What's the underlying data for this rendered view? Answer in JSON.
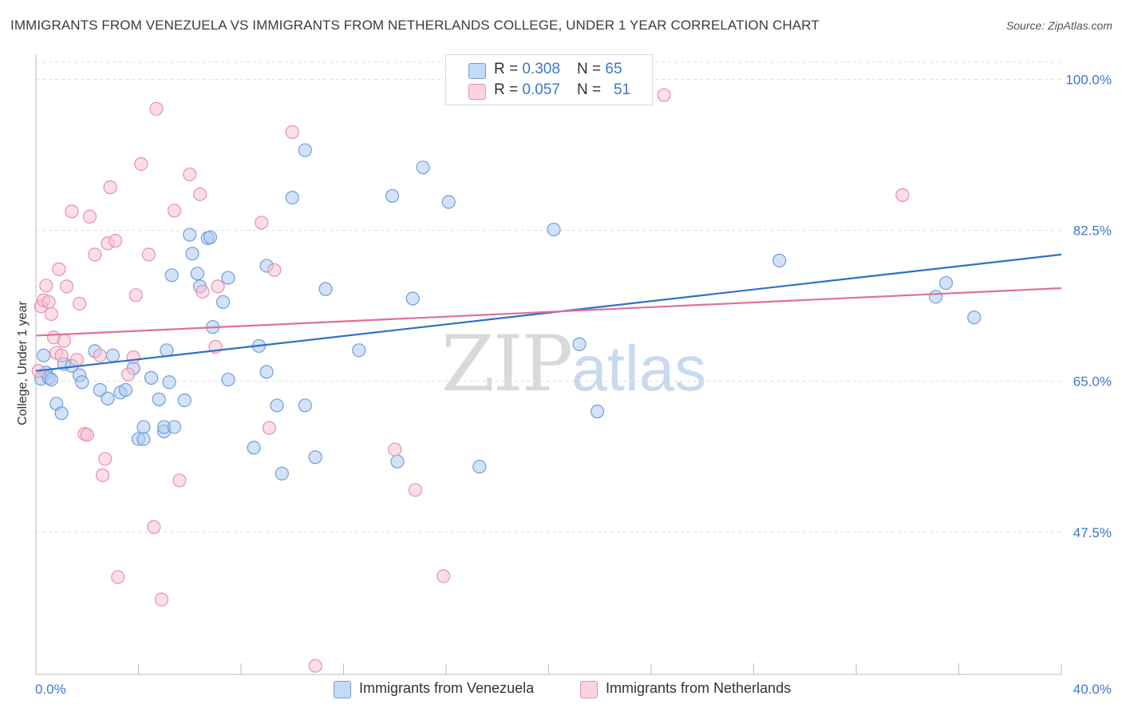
{
  "title": "IMMIGRANTS FROM VENEZUELA VS IMMIGRANTS FROM NETHERLANDS COLLEGE, UNDER 1 YEAR CORRELATION CHART",
  "source": "Source: ZipAtlas.com",
  "watermark": {
    "zip": "ZIP",
    "atlas": "atlas"
  },
  "colors": {
    "blue_fill": "#aecbf0",
    "blue_stroke": "#6d9fd9",
    "blue_line": "#2f6fcc",
    "pink_fill": "#f7c3d3",
    "pink_stroke": "#e98fab",
    "pink_line": "#e0709a",
    "grid": "#dcdcdc",
    "axis_label": "#3b78c8"
  },
  "legend": [
    {
      "r_label": "R = ",
      "r_value": "0.308",
      "n_label": "N = ",
      "n_value": "65"
    },
    {
      "r_label": "R = ",
      "r_value": "0.057",
      "n_label": "N = ",
      "n_value": "51"
    }
  ],
  "chart_data": {
    "type": "scatter",
    "title": "IMMIGRANTS FROM VENEZUELA VS IMMIGRANTS FROM NETHERLANDS COLLEGE, UNDER 1 YEAR CORRELATION CHART",
    "xlabel": "",
    "ylabel": "College, Under 1 year",
    "xlim": [
      0,
      40
    ],
    "ylim": [
      31,
      102
    ],
    "x_tick_labels": [
      "0.0%",
      "40.0%"
    ],
    "y_ticks": [
      100,
      82.5,
      65,
      47.5
    ],
    "y_tick_labels": [
      "100.0%",
      "82.5%",
      "65.0%",
      "47.5%"
    ],
    "grid": true,
    "legend_position": "top-center",
    "series": [
      {
        "name": "Immigrants from Venezuela",
        "color": "#aecbf0",
        "trend": {
          "x": [
            0,
            40
          ],
          "y": [
            66.2,
            79.7
          ]
        },
        "points": [
          [
            0.2,
            65.3
          ],
          [
            0.3,
            68.0
          ],
          [
            0.4,
            66.0
          ],
          [
            0.5,
            65.4
          ],
          [
            0.6,
            65.2
          ],
          [
            0.8,
            62.4
          ],
          [
            1.0,
            61.3
          ],
          [
            1.1,
            67.0
          ],
          [
            1.4,
            66.8
          ],
          [
            1.7,
            65.7
          ],
          [
            1.8,
            64.9
          ],
          [
            2.3,
            68.5
          ],
          [
            2.5,
            64.0
          ],
          [
            2.8,
            63.0
          ],
          [
            3.0,
            68.0
          ],
          [
            3.3,
            63.7
          ],
          [
            3.5,
            64.0
          ],
          [
            3.8,
            66.5
          ],
          [
            4.0,
            58.3
          ],
          [
            4.2,
            59.7
          ],
          [
            4.2,
            58.3
          ],
          [
            4.5,
            65.4
          ],
          [
            4.8,
            62.9
          ],
          [
            5.0,
            59.2
          ],
          [
            5.0,
            59.7
          ],
          [
            5.1,
            68.6
          ],
          [
            5.2,
            64.9
          ],
          [
            5.3,
            77.3
          ],
          [
            5.4,
            59.7
          ],
          [
            5.8,
            62.8
          ],
          [
            6.0,
            82.0
          ],
          [
            6.1,
            79.8
          ],
          [
            6.3,
            77.5
          ],
          [
            6.4,
            76.0
          ],
          [
            6.7,
            81.6
          ],
          [
            6.8,
            81.7
          ],
          [
            6.9,
            71.3
          ],
          [
            7.3,
            74.2
          ],
          [
            7.5,
            77.0
          ],
          [
            7.5,
            65.2
          ],
          [
            8.5,
            57.3
          ],
          [
            8.7,
            69.1
          ],
          [
            9.0,
            66.1
          ],
          [
            9.0,
            78.4
          ],
          [
            9.4,
            62.2
          ],
          [
            9.6,
            54.3
          ],
          [
            10.0,
            86.3
          ],
          [
            10.5,
            91.8
          ],
          [
            10.5,
            62.2
          ],
          [
            10.9,
            56.2
          ],
          [
            11.3,
            75.7
          ],
          [
            12.6,
            68.6
          ],
          [
            13.9,
            86.5
          ],
          [
            14.1,
            55.7
          ],
          [
            14.7,
            74.6
          ],
          [
            15.1,
            89.8
          ],
          [
            16.1,
            85.8
          ],
          [
            17.3,
            55.1
          ],
          [
            20.2,
            82.6
          ],
          [
            21.2,
            69.3
          ],
          [
            21.9,
            61.5
          ],
          [
            29.0,
            79.0
          ],
          [
            35.1,
            74.8
          ],
          [
            35.5,
            76.4
          ],
          [
            36.6,
            72.4
          ]
        ]
      },
      {
        "name": "Immigrants from Netherlands",
        "color": "#f7c3d3",
        "trend": {
          "x": [
            0,
            40
          ],
          "y": [
            70.3,
            75.8
          ]
        },
        "points": [
          [
            0.1,
            66.2
          ],
          [
            0.2,
            73.7
          ],
          [
            0.3,
            74.4
          ],
          [
            0.4,
            76.1
          ],
          [
            0.5,
            74.2
          ],
          [
            0.6,
            72.8
          ],
          [
            0.7,
            70.1
          ],
          [
            0.8,
            68.3
          ],
          [
            0.9,
            78.0
          ],
          [
            1.1,
            69.7
          ],
          [
            1.2,
            76.0
          ],
          [
            1.4,
            84.7
          ],
          [
            1.6,
            67.5
          ],
          [
            1.7,
            74.0
          ],
          [
            1.9,
            58.9
          ],
          [
            2.0,
            58.8
          ],
          [
            2.1,
            84.1
          ],
          [
            2.3,
            79.7
          ],
          [
            2.5,
            68.0
          ],
          [
            2.6,
            54.1
          ],
          [
            2.7,
            56.0
          ],
          [
            2.8,
            81.0
          ],
          [
            2.9,
            87.5
          ],
          [
            3.1,
            81.3
          ],
          [
            3.2,
            42.3
          ],
          [
            3.6,
            65.8
          ],
          [
            3.8,
            67.8
          ],
          [
            3.9,
            75.0
          ],
          [
            4.1,
            90.2
          ],
          [
            4.4,
            79.7
          ],
          [
            4.6,
            48.1
          ],
          [
            4.7,
            96.6
          ],
          [
            4.9,
            39.7
          ],
          [
            5.4,
            84.8
          ],
          [
            5.6,
            53.5
          ],
          [
            6.0,
            89.0
          ],
          [
            6.4,
            86.7
          ],
          [
            6.5,
            75.4
          ],
          [
            7.0,
            69.0
          ],
          [
            7.1,
            76.0
          ],
          [
            8.8,
            83.4
          ],
          [
            9.1,
            59.6
          ],
          [
            9.3,
            77.9
          ],
          [
            10.0,
            93.9
          ],
          [
            10.9,
            32.0
          ],
          [
            14.0,
            57.1
          ],
          [
            14.8,
            52.4
          ],
          [
            15.9,
            42.4
          ],
          [
            24.5,
            98.2
          ],
          [
            33.8,
            86.6
          ],
          [
            1.0,
            68.0
          ]
        ]
      }
    ]
  }
}
